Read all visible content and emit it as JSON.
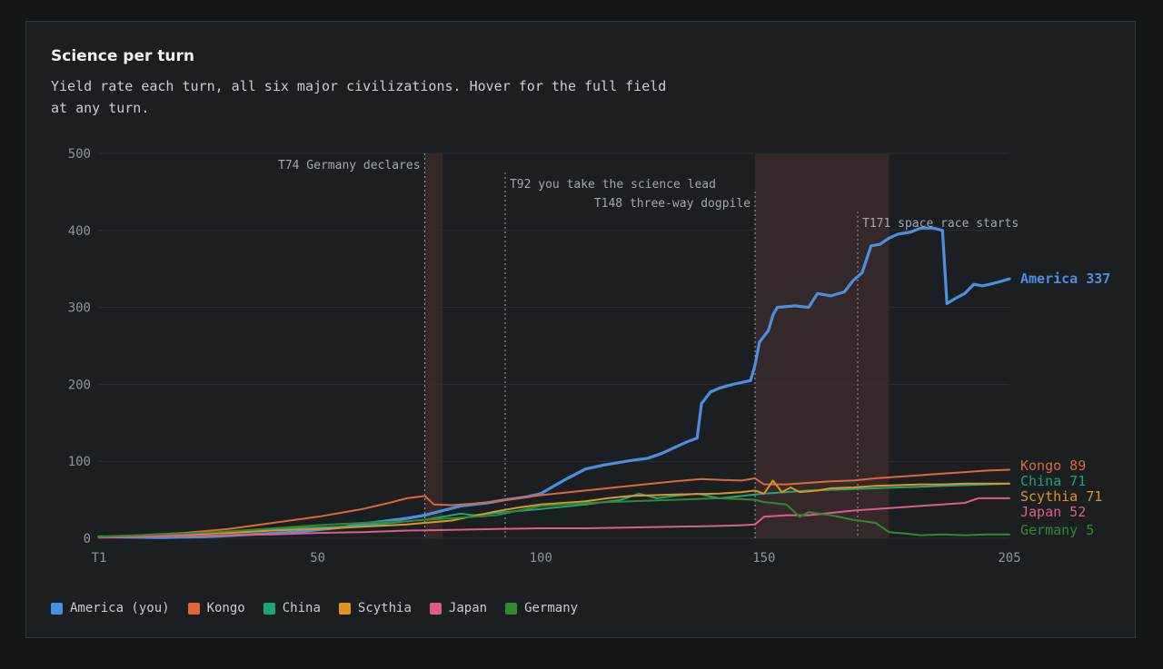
{
  "card": {
    "title": "Science per turn",
    "subtitle": "Yield rate each turn, all six major civilizations. Hover for the full field at any turn."
  },
  "chart_data": {
    "type": "line",
    "title": "Science per turn",
    "xlabel": "",
    "ylabel": "",
    "xlim": [
      1,
      205
    ],
    "ylim": [
      0,
      500
    ],
    "x_ticks": [
      1,
      50,
      100,
      150,
      205
    ],
    "x_tick_labels": [
      "T1",
      "50",
      "100",
      "150",
      "205"
    ],
    "y_ticks": [
      0,
      100,
      200,
      300,
      400,
      500
    ],
    "grid": "horizontal",
    "legend_position": "bottom",
    "shaded_ranges": [
      {
        "from": 74,
        "to": 78
      },
      {
        "from": 148,
        "to": 178
      }
    ],
    "annotations": [
      {
        "turn": 74,
        "label": "T74 Germany declares"
      },
      {
        "turn": 92,
        "label": "T92 you take the science lead"
      },
      {
        "turn": 148,
        "label": "T148 three-way dogpile"
      },
      {
        "turn": 171,
        "label": "T171 space race starts"
      }
    ],
    "series": [
      {
        "name": "America (you)",
        "end_label": "America 337",
        "color": "#4a90e2",
        "points": [
          [
            1,
            2
          ],
          [
            15,
            1
          ],
          [
            25,
            2
          ],
          [
            35,
            5
          ],
          [
            45,
            8
          ],
          [
            55,
            14
          ],
          [
            62,
            20
          ],
          [
            70,
            26
          ],
          [
            74,
            30
          ],
          [
            78,
            36
          ],
          [
            82,
            42
          ],
          [
            88,
            46
          ],
          [
            92,
            50
          ],
          [
            97,
            54
          ],
          [
            100,
            58
          ],
          [
            103,
            68
          ],
          [
            106,
            78
          ],
          [
            110,
            90
          ],
          [
            114,
            95
          ],
          [
            117,
            98
          ],
          [
            120,
            101
          ],
          [
            124,
            104
          ],
          [
            127,
            110
          ],
          [
            130,
            118
          ],
          [
            133,
            126
          ],
          [
            135,
            130
          ],
          [
            136,
            175
          ],
          [
            138,
            190
          ],
          [
            140,
            195
          ],
          [
            143,
            200
          ],
          [
            147,
            205
          ],
          [
            148,
            225
          ],
          [
            149,
            255
          ],
          [
            151,
            270
          ],
          [
            152,
            290
          ],
          [
            153,
            300
          ],
          [
            157,
            302
          ],
          [
            160,
            300
          ],
          [
            162,
            318
          ],
          [
            165,
            315
          ],
          [
            168,
            320
          ],
          [
            170,
            335
          ],
          [
            172,
            345
          ],
          [
            174,
            380
          ],
          [
            176,
            382
          ],
          [
            178,
            390
          ],
          [
            180,
            395
          ],
          [
            183,
            398
          ],
          [
            185,
            403
          ],
          [
            188,
            403
          ],
          [
            190,
            400
          ],
          [
            191,
            305
          ],
          [
            193,
            312
          ],
          [
            195,
            318
          ],
          [
            197,
            330
          ],
          [
            199,
            328
          ],
          [
            202,
            332
          ],
          [
            205,
            337
          ]
        ]
      },
      {
        "name": "Kongo",
        "end_label": "Kongo 89",
        "color": "#e0663a",
        "points": [
          [
            1,
            2
          ],
          [
            10,
            4
          ],
          [
            20,
            7
          ],
          [
            30,
            12
          ],
          [
            40,
            20
          ],
          [
            50,
            28
          ],
          [
            60,
            38
          ],
          [
            66,
            46
          ],
          [
            70,
            52
          ],
          [
            74,
            55
          ],
          [
            76,
            44
          ],
          [
            80,
            43
          ],
          [
            85,
            45
          ],
          [
            90,
            48
          ],
          [
            100,
            56
          ],
          [
            110,
            62
          ],
          [
            120,
            68
          ],
          [
            130,
            74
          ],
          [
            136,
            77
          ],
          [
            140,
            76
          ],
          [
            145,
            75
          ],
          [
            148,
            78
          ],
          [
            150,
            70
          ],
          [
            155,
            70
          ],
          [
            160,
            72
          ],
          [
            165,
            74
          ],
          [
            170,
            75
          ],
          [
            175,
            78
          ],
          [
            180,
            80
          ],
          [
            185,
            82
          ],
          [
            190,
            84
          ],
          [
            195,
            86
          ],
          [
            200,
            88
          ],
          [
            205,
            89
          ]
        ]
      },
      {
        "name": "China",
        "end_label": "China 71",
        "color": "#1fa37a",
        "points": [
          [
            1,
            2
          ],
          [
            10,
            3
          ],
          [
            20,
            6
          ],
          [
            30,
            8
          ],
          [
            40,
            12
          ],
          [
            50,
            14
          ],
          [
            60,
            16
          ],
          [
            70,
            22
          ],
          [
            74,
            24
          ],
          [
            78,
            28
          ],
          [
            82,
            32
          ],
          [
            85,
            30
          ],
          [
            90,
            33
          ],
          [
            100,
            38
          ],
          [
            110,
            44
          ],
          [
            118,
            50
          ],
          [
            122,
            58
          ],
          [
            126,
            52
          ],
          [
            130,
            55
          ],
          [
            135,
            58
          ],
          [
            140,
            52
          ],
          [
            145,
            55
          ],
          [
            150,
            58
          ],
          [
            155,
            60
          ],
          [
            160,
            62
          ],
          [
            165,
            63
          ],
          [
            170,
            64
          ],
          [
            175,
            65
          ],
          [
            180,
            66
          ],
          [
            185,
            67
          ],
          [
            190,
            68
          ],
          [
            195,
            69
          ],
          [
            200,
            70
          ],
          [
            205,
            71
          ]
        ]
      },
      {
        "name": "Scythia",
        "end_label": "Scythia 71",
        "color": "#e0951f",
        "points": [
          [
            1,
            2
          ],
          [
            10,
            3
          ],
          [
            20,
            5
          ],
          [
            30,
            7
          ],
          [
            40,
            10
          ],
          [
            50,
            12
          ],
          [
            60,
            15
          ],
          [
            70,
            18
          ],
          [
            74,
            20
          ],
          [
            80,
            23
          ],
          [
            90,
            35
          ],
          [
            95,
            40
          ],
          [
            100,
            44
          ],
          [
            110,
            48
          ],
          [
            115,
            52
          ],
          [
            120,
            55
          ],
          [
            130,
            57
          ],
          [
            140,
            58
          ],
          [
            145,
            60
          ],
          [
            148,
            62
          ],
          [
            150,
            58
          ],
          [
            152,
            75
          ],
          [
            154,
            60
          ],
          [
            156,
            66
          ],
          [
            158,
            60
          ],
          [
            162,
            62
          ],
          [
            165,
            65
          ],
          [
            170,
            66
          ],
          [
            175,
            68
          ],
          [
            180,
            69
          ],
          [
            185,
            70
          ],
          [
            190,
            70
          ],
          [
            195,
            71
          ],
          [
            200,
            71
          ],
          [
            205,
            71
          ]
        ]
      },
      {
        "name": "Japan",
        "end_label": "Japan 52",
        "color": "#e05a8a",
        "points": [
          [
            1,
            1
          ],
          [
            10,
            2
          ],
          [
            20,
            3
          ],
          [
            30,
            4
          ],
          [
            40,
            5
          ],
          [
            50,
            7
          ],
          [
            60,
            8
          ],
          [
            70,
            10
          ],
          [
            80,
            11
          ],
          [
            90,
            12
          ],
          [
            100,
            13
          ],
          [
            110,
            13
          ],
          [
            120,
            14
          ],
          [
            130,
            15
          ],
          [
            140,
            16
          ],
          [
            145,
            17
          ],
          [
            148,
            18
          ],
          [
            150,
            28
          ],
          [
            155,
            30
          ],
          [
            160,
            30
          ],
          [
            165,
            33
          ],
          [
            170,
            36
          ],
          [
            175,
            38
          ],
          [
            180,
            40
          ],
          [
            185,
            42
          ],
          [
            190,
            44
          ],
          [
            195,
            46
          ],
          [
            198,
            52
          ],
          [
            205,
            52
          ]
        ]
      },
      {
        "name": "Germany",
        "end_label": "Germany 5",
        "color": "#2e8b2e",
        "points": [
          [
            1,
            2
          ],
          [
            10,
            4
          ],
          [
            20,
            6
          ],
          [
            30,
            9
          ],
          [
            40,
            13
          ],
          [
            50,
            17
          ],
          [
            60,
            20
          ],
          [
            70,
            22
          ],
          [
            74,
            24
          ],
          [
            80,
            26
          ],
          [
            90,
            30
          ],
          [
            100,
            42
          ],
          [
            110,
            46
          ],
          [
            120,
            48
          ],
          [
            130,
            50
          ],
          [
            140,
            52
          ],
          [
            148,
            50
          ],
          [
            150,
            47
          ],
          [
            155,
            44
          ],
          [
            158,
            28
          ],
          [
            160,
            34
          ],
          [
            165,
            30
          ],
          [
            170,
            24
          ],
          [
            175,
            20
          ],
          [
            178,
            8
          ],
          [
            182,
            6
          ],
          [
            185,
            4
          ],
          [
            190,
            5
          ],
          [
            195,
            4
          ],
          [
            200,
            5
          ],
          [
            205,
            5
          ]
        ]
      }
    ]
  }
}
